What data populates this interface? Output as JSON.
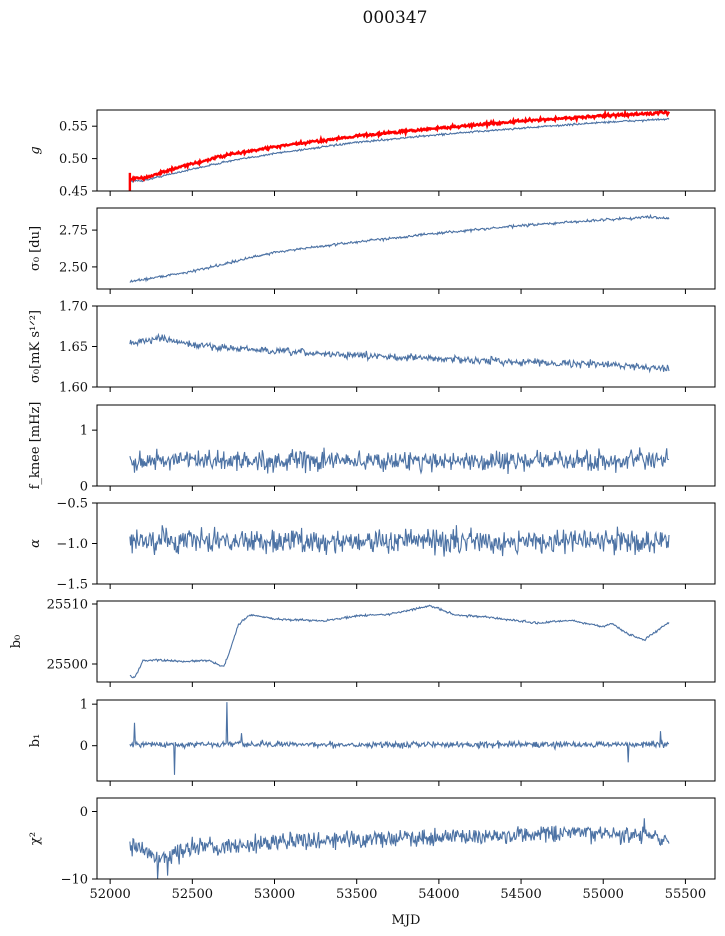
{
  "figure": {
    "title": "000347",
    "xlabel": "MJD",
    "xlim": [
      51920,
      55680
    ],
    "xticks": [
      52000,
      52500,
      53000,
      53500,
      54000,
      54500,
      55000,
      55500
    ],
    "x_start": 52120,
    "x_end": 55400
  },
  "colors": {
    "series": "#4c72a4",
    "model": "#ff0000",
    "axis": "#000000"
  },
  "chart_data": [
    {
      "type": "line",
      "ylabel": "g",
      "ylim": [
        0.45,
        0.575
      ],
      "yticks": [
        0.45,
        0.5,
        0.55
      ],
      "yticklabels": [
        "0.45",
        "0.50",
        "0.55"
      ],
      "series": [
        {
          "name": "",
          "color": "#4c72a4",
          "x": [
            52120,
            52200,
            52400,
            52700,
            53000,
            53500,
            54000,
            54500,
            55000,
            55400
          ],
          "y": [
            0.465,
            0.466,
            0.478,
            0.495,
            0.508,
            0.525,
            0.537,
            0.547,
            0.556,
            0.561
          ],
          "noise": 0.001
        },
        {
          "name": "",
          "color": "#ff0000",
          "x": [
            52120,
            52200,
            52400,
            52700,
            53000,
            53500,
            54000,
            54500,
            55000,
            55400
          ],
          "y": [
            0.468,
            0.47,
            0.485,
            0.505,
            0.518,
            0.535,
            0.547,
            0.558,
            0.566,
            0.571
          ],
          "noise": 0.0015,
          "spike": {
            "x": 52120,
            "ymin": 0.45,
            "ymax": 0.478
          }
        }
      ]
    },
    {
      "type": "line",
      "ylabel": "σ₀ [du]",
      "ylim": [
        2.35,
        2.9
      ],
      "yticks": [
        2.5,
        2.75
      ],
      "yticklabels": [
        "2.50",
        "2.75"
      ],
      "series": [
        {
          "name": "",
          "color": "#4c72a4",
          "x": [
            52120,
            52500,
            53000,
            53500,
            54000,
            54500,
            55000,
            55300,
            55400
          ],
          "y": [
            2.4,
            2.47,
            2.6,
            2.67,
            2.73,
            2.78,
            2.82,
            2.84,
            2.83
          ],
          "noise": 0.006
        }
      ]
    },
    {
      "type": "line",
      "ylabel": "σ₀[mK s¹ᐟ²]",
      "ylim": [
        1.6,
        1.7
      ],
      "yticks": [
        1.6,
        1.65,
        1.7
      ],
      "yticklabels": [
        "1.60",
        "1.65",
        "1.70"
      ],
      "series": [
        {
          "name": "",
          "color": "#4c72a4",
          "x": [
            52120,
            52300,
            52500,
            52800,
            53000,
            53500,
            54000,
            54500,
            55000,
            55400
          ],
          "y": [
            1.654,
            1.66,
            1.652,
            1.647,
            1.644,
            1.639,
            1.635,
            1.631,
            1.628,
            1.623
          ],
          "noise": 0.003
        }
      ]
    },
    {
      "type": "line",
      "ylabel": "f_knee [mHz]",
      "ylim": [
        0,
        1.45
      ],
      "yticks": [
        0,
        1
      ],
      "yticklabels": [
        "0",
        "1"
      ],
      "series": [
        {
          "name": "",
          "color": "#4c72a4",
          "x": [
            52120,
            55400
          ],
          "y": [
            0.45,
            0.45
          ],
          "noise": 0.12
        }
      ]
    },
    {
      "type": "line",
      "ylabel": "α",
      "ylim": [
        -1.5,
        -0.5
      ],
      "yticks": [
        -1.5,
        -1.0,
        -0.5
      ],
      "yticklabels": [
        "−1.5",
        "−1.0",
        "−0.5"
      ],
      "series": [
        {
          "name": "",
          "color": "#4c72a4",
          "x": [
            52120,
            55400
          ],
          "y": [
            -0.97,
            -0.97
          ],
          "noise": 0.1
        }
      ]
    },
    {
      "type": "line",
      "ylabel": "b₀",
      "ylim": [
        25497,
        25510.5
      ],
      "yticks": [
        25500,
        25510
      ],
      "yticklabels": [
        "25500",
        "25510"
      ],
      "series": [
        {
          "name": "",
          "color": "#4c72a4",
          "x": [
            52120,
            52150,
            52200,
            52300,
            52450,
            52600,
            52690,
            52720,
            52780,
            52850,
            53000,
            53300,
            53500,
            53700,
            53950,
            54100,
            54300,
            54600,
            54800,
            55000,
            55050,
            55150,
            55250,
            55350,
            55400
          ],
          "y": [
            25498,
            25497.8,
            25500.5,
            25500.7,
            25500.4,
            25500.6,
            25499.5,
            25501.5,
            25506.5,
            25508.2,
            25507.5,
            25507.2,
            25508,
            25508.3,
            25509.7,
            25508.2,
            25507.8,
            25506.8,
            25507.3,
            25506.2,
            25506.8,
            25505,
            25504,
            25506,
            25507
          ],
          "noise": 0.12
        }
      ]
    },
    {
      "type": "line",
      "ylabel": "b₁",
      "ylim": [
        -0.85,
        1.1
      ],
      "yticks": [
        0,
        1
      ],
      "yticklabels": [
        "0",
        "1"
      ],
      "series": [
        {
          "name": "",
          "color": "#4c72a4",
          "x": [
            52120,
            55400
          ],
          "y": [
            0.03,
            0.03
          ],
          "noise": 0.05,
          "spikes": [
            [
              52150,
              0.55
            ],
            [
              52390,
              -0.7
            ],
            [
              52710,
              1.05
            ],
            [
              52800,
              0.3
            ],
            [
              55150,
              -0.4
            ],
            [
              55350,
              0.35
            ]
          ]
        }
      ]
    },
    {
      "type": "line",
      "ylabel": "χ²",
      "ylim": [
        -10,
        2
      ],
      "yticks": [
        -10,
        0
      ],
      "yticklabels": [
        "−10",
        "0"
      ],
      "series": [
        {
          "name": "",
          "color": "#4c72a4",
          "x": [
            52120,
            52300,
            52500,
            53000,
            53500,
            54000,
            54500,
            55000,
            55400
          ],
          "y": [
            -5,
            -7,
            -5.5,
            -4.5,
            -4,
            -3.8,
            -3.5,
            -3.2,
            -4
          ],
          "noise": 0.9,
          "spikes": [
            [
              52290,
              -10
            ],
            [
              52350,
              -9.5
            ],
            [
              55250,
              -1
            ]
          ]
        }
      ]
    }
  ]
}
